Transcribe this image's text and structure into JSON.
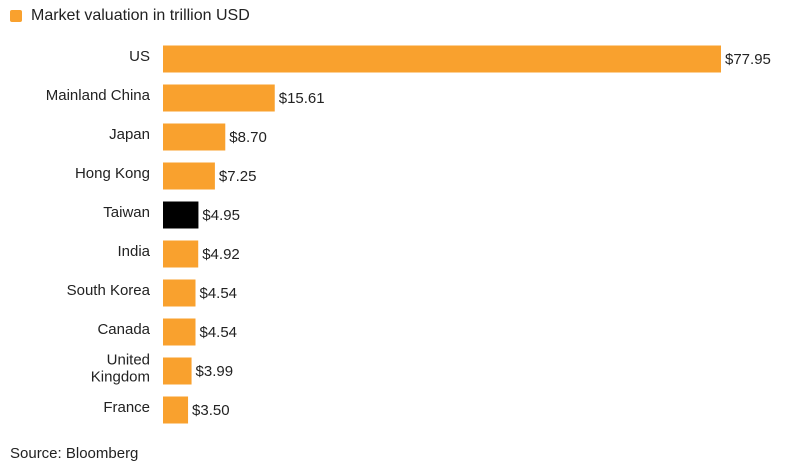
{
  "legend": {
    "label": "Market valuation in trillion USD"
  },
  "source": "Source: Bloomberg",
  "colors": {
    "default_bar": "#F9A12E",
    "highlight_bar": "#000000"
  },
  "chart_data": {
    "type": "bar",
    "orientation": "horizontal",
    "categories": [
      "US",
      "Mainland China",
      "Japan",
      "Hong Kong",
      "Taiwan",
      "India",
      "South Korea",
      "Canada",
      "United Kingdom",
      "France"
    ],
    "category_lines": [
      [
        "US"
      ],
      [
        "Mainland China"
      ],
      [
        "Japan"
      ],
      [
        "Hong Kong"
      ],
      [
        "Taiwan"
      ],
      [
        "India"
      ],
      [
        "South Korea"
      ],
      [
        "Canada"
      ],
      [
        "United",
        "Kingdom"
      ],
      [
        "France"
      ]
    ],
    "series": [
      {
        "name": "Market valuation in trillion USD",
        "values": [
          77.95,
          15.61,
          8.7,
          7.25,
          4.95,
          4.92,
          4.54,
          4.54,
          3.99,
          3.5
        ]
      }
    ],
    "value_labels": [
      "$77.95",
      "$15.61",
      "$8.70",
      "$7.25",
      "$4.95",
      "$4.92",
      "$4.54",
      "$4.54",
      "$3.99",
      "$3.50"
    ],
    "highlight_index": 4,
    "xlim": [
      0,
      77.95
    ],
    "grid": false,
    "legend_position": "top-left"
  }
}
